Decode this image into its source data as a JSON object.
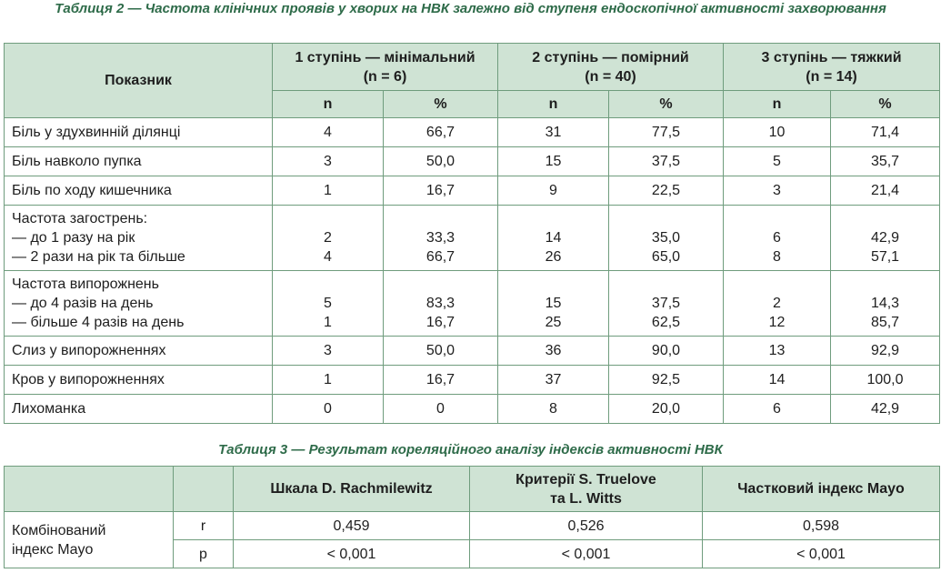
{
  "table2": {
    "caption": "Таблиця 2 — Частота клінічних проявів у хворих на НВК залежно від ступеня ендоскопічної активності захворювання",
    "header": {
      "indicator": "Показник",
      "groups": [
        {
          "title": "1 ступінь — мінімальний",
          "n_label": "(n = 6)"
        },
        {
          "title": "2 ступінь — помірний",
          "n_label": "(n = 40)"
        },
        {
          "title": "3 ступінь — тяжкий",
          "n_label": "(n = 14)"
        }
      ],
      "n": "n",
      "pct": "%"
    },
    "rows": [
      {
        "label": [
          "Біль у здухвинній ділянці"
        ],
        "v": [
          [
            "4"
          ],
          [
            "66,7"
          ],
          [
            "31"
          ],
          [
            "77,5"
          ],
          [
            "10"
          ],
          [
            "71,4"
          ]
        ]
      },
      {
        "label": [
          "Біль навколо пупка"
        ],
        "v": [
          [
            "3"
          ],
          [
            "50,0"
          ],
          [
            "15"
          ],
          [
            "37,5"
          ],
          [
            "5"
          ],
          [
            "35,7"
          ]
        ]
      },
      {
        "label": [
          "Біль по ходу кишечника"
        ],
        "v": [
          [
            "1"
          ],
          [
            "16,7"
          ],
          [
            "9"
          ],
          [
            "22,5"
          ],
          [
            "3"
          ],
          [
            "21,4"
          ]
        ]
      },
      {
        "label": [
          "Частота загострень:",
          "— до 1 разу на рік",
          "— 2 рази на рік та більше"
        ],
        "v": [
          [
            "",
            "2",
            "4"
          ],
          [
            "",
            "33,3",
            "66,7"
          ],
          [
            "",
            "14",
            "26"
          ],
          [
            "",
            "35,0",
            "65,0"
          ],
          [
            "",
            "6",
            "8"
          ],
          [
            "",
            "42,9",
            "57,1"
          ]
        ]
      },
      {
        "label": [
          "Частота випорожнень",
          "— до 4 разів на день",
          "— більше 4 разів на день"
        ],
        "v": [
          [
            "",
            "5",
            "1"
          ],
          [
            "",
            "83,3",
            "16,7"
          ],
          [
            "",
            "15",
            "25"
          ],
          [
            "",
            "37,5",
            "62,5"
          ],
          [
            "",
            "2",
            "12"
          ],
          [
            "",
            "14,3",
            "85,7"
          ]
        ]
      },
      {
        "label": [
          "Слиз у випорожненнях"
        ],
        "v": [
          [
            "3"
          ],
          [
            "50,0"
          ],
          [
            "36"
          ],
          [
            "90,0"
          ],
          [
            "13"
          ],
          [
            "92,9"
          ]
        ]
      },
      {
        "label": [
          "Кров у випорожненнях"
        ],
        "v": [
          [
            "1"
          ],
          [
            "16,7"
          ],
          [
            "37"
          ],
          [
            "92,5"
          ],
          [
            "14"
          ],
          [
            "100,0"
          ]
        ]
      },
      {
        "label": [
          "Лихоманка"
        ],
        "v": [
          [
            "0"
          ],
          [
            "0"
          ],
          [
            "8"
          ],
          [
            "20,0"
          ],
          [
            "6"
          ],
          [
            "42,9"
          ]
        ]
      }
    ]
  },
  "table3": {
    "caption": "Таблиця 3 — Результат кореляційного аналізу індексів активності НВК",
    "header": {
      "col1": "Шкала D. Rachmilewitz",
      "col2": [
        "Критерії S. Truelove",
        "та L. Witts"
      ],
      "col3": "Частковий індекс Mayo"
    },
    "row_label": [
      "Комбінований",
      "індекс Mayo"
    ],
    "rows": [
      {
        "stat": "r",
        "values": [
          "0,459",
          "0,526",
          "0,598"
        ]
      },
      {
        "stat": "p",
        "values": [
          "< 0,001",
          "< 0,001",
          "< 0,001"
        ]
      }
    ]
  }
}
